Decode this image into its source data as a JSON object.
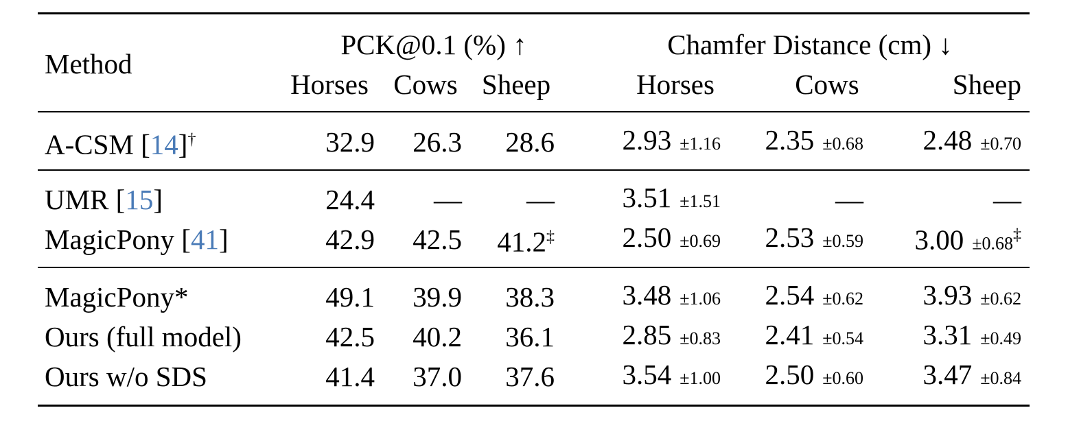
{
  "table": {
    "header": {
      "method": "Method",
      "groups": [
        "PCK@0.1 (%) ↑",
        "Chamfer Distance (cm) ↓"
      ],
      "pck_columns": [
        "Horses",
        "Cows",
        "Sheep"
      ],
      "cd_columns": [
        "Horses",
        "Cows",
        "Sheep"
      ]
    },
    "groups": [
      [
        {
          "method": [
            {
              "text": "A-CSM ["
            },
            {
              "text": "14",
              "style": "ref"
            },
            {
              "text": "]"
            },
            {
              "text": "†",
              "style": "sup"
            }
          ],
          "pck": [
            {
              "value": "32.9"
            },
            {
              "value": "26.3"
            },
            {
              "value": "28.6"
            }
          ],
          "cd": [
            {
              "mean": "2.93",
              "std": "±1.16"
            },
            {
              "mean": "2.35",
              "std": "±0.68"
            },
            {
              "mean": "2.48",
              "std": "±0.70"
            }
          ]
        }
      ],
      [
        {
          "method": [
            {
              "text": "UMR ["
            },
            {
              "text": "15",
              "style": "ref"
            },
            {
              "text": "]"
            }
          ],
          "pck": [
            {
              "value": "24.4"
            },
            {
              "value": "—"
            },
            {
              "value": "—"
            }
          ],
          "cd": [
            {
              "mean": "3.51",
              "std": "±1.51"
            },
            {
              "mean": "—"
            },
            {
              "mean": "—"
            }
          ]
        },
        {
          "method": [
            {
              "text": "MagicPony ["
            },
            {
              "text": "41",
              "style": "ref"
            },
            {
              "text": "]"
            }
          ],
          "pck": [
            {
              "value": "42.9"
            },
            {
              "value": "42.5"
            },
            {
              "value": "41.2",
              "sup": "‡"
            }
          ],
          "cd": [
            {
              "mean": "2.50",
              "std": "±0.69"
            },
            {
              "mean": "2.53",
              "std": "±0.59"
            },
            {
              "mean": "3.00",
              "std": "±0.68",
              "sup": "‡"
            }
          ]
        }
      ],
      [
        {
          "method": [
            {
              "text": "MagicPony*"
            }
          ],
          "pck": [
            {
              "value": "49.1"
            },
            {
              "value": "39.9"
            },
            {
              "value": "38.3"
            }
          ],
          "cd": [
            {
              "mean": "3.48",
              "std": "±1.06"
            },
            {
              "mean": "2.54",
              "std": "±0.62"
            },
            {
              "mean": "3.93",
              "std": "±0.62"
            }
          ]
        },
        {
          "method": [
            {
              "text": "Ours (full model)"
            }
          ],
          "pck": [
            {
              "value": "42.5"
            },
            {
              "value": "40.2"
            },
            {
              "value": "36.1"
            }
          ],
          "cd": [
            {
              "mean": "2.85",
              "std": "±0.83"
            },
            {
              "mean": "2.41",
              "std": "±0.54"
            },
            {
              "mean": "3.31",
              "std": "±0.49"
            }
          ]
        },
        {
          "method": [
            {
              "text": "Ours w/o SDS"
            }
          ],
          "pck": [
            {
              "value": "41.4"
            },
            {
              "value": "37.0"
            },
            {
              "value": "37.6"
            }
          ],
          "cd": [
            {
              "mean": "3.54",
              "std": "±1.00"
            },
            {
              "mean": "2.50",
              "std": "±0.60"
            },
            {
              "mean": "3.47",
              "std": "±0.84"
            }
          ]
        }
      ]
    ]
  }
}
